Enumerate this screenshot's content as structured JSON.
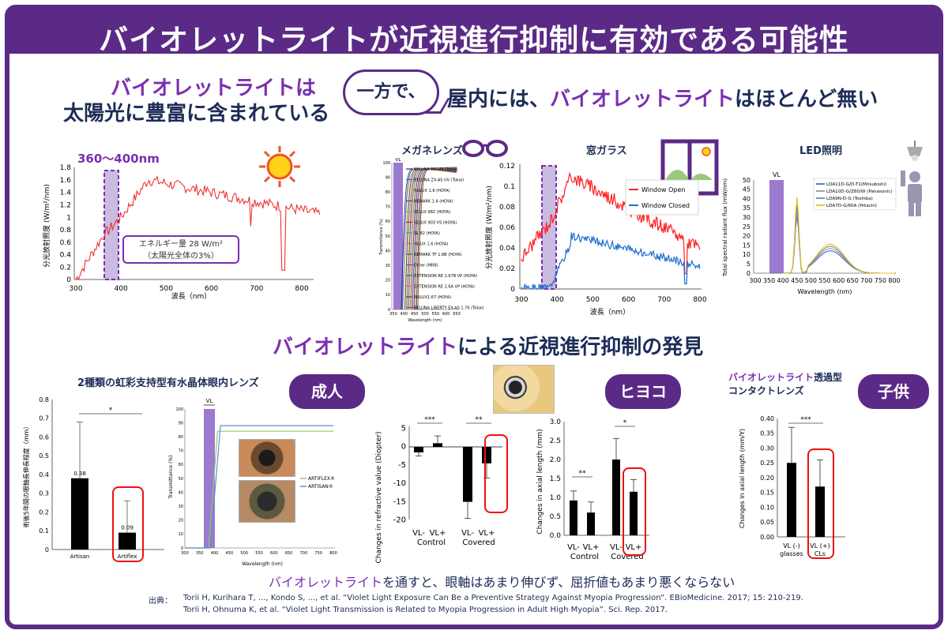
{
  "header": {
    "title": "バイオレットライトが近視進行抑制に有効である可能性"
  },
  "top": {
    "left_heading_1": "バイオレットライトは",
    "left_heading_2": "太陽光に豊富に含まれている",
    "bubble": "一方で、",
    "right_heading_pre": "屋内には、",
    "right_heading_hl": "バイオレットライト",
    "right_heading_post": "はほとんど無い"
  },
  "solar_chart": {
    "range_label": "360～400nm",
    "ylabel": "分光放射照度 (W/m²/nm)",
    "xlabel": "波長（nm）",
    "y_ticks": [
      "1.8",
      "1.6",
      "1.4",
      "1.2",
      "1",
      "0.8",
      "0.6",
      "0.4",
      "0.2",
      "0"
    ],
    "x_ticks": [
      "300",
      "400",
      "500",
      "600",
      "700",
      "800"
    ],
    "callout_1": "エネルギー量 28 W/m²",
    "callout_2": "（太陽光全体の3%）"
  },
  "glasses_chart": {
    "title": "メガネレンズ",
    "vl": "VL",
    "ylabel": "Transmittance (%)",
    "xlabel": "Wavelength (nm)",
    "y_ticks": [
      "100",
      "90",
      "80",
      "70",
      "60",
      "50",
      "40",
      "30",
      "20",
      "10",
      "0"
    ],
    "x_ticks": [
      "350",
      "400",
      "450",
      "500",
      "550",
      "600",
      "650"
    ],
    "legend": [
      "BELUNA HX UV (Tokai)",
      "BELUNA ZX-AS UV (Tokai)",
      "NULUX 1.6 (HOYA)",
      "REMARK 1.6 (HOYA)",
      "SELUX 982 (HOYA)",
      "SELUX 903 VS (HOYA)",
      "SL 82 (HOYA)",
      "HILUX 1.6 (HOYA)",
      "REMARK TF 1.6B (HOYA)",
      "Other (MR8)",
      "EXTENSION RE 1.67B VP (HOYA)",
      "EXTENSION RE 1.6A VP (HOYA)",
      "NULUX1.67 (HOYA)",
      "BELUNA LIBERTY EX-AS 1.76 (Tokai)"
    ]
  },
  "window_chart": {
    "title": "窓ガラス",
    "ylabel": "分光放射照度 (W/m²/nm)",
    "xlabel": "波長（nm）",
    "y_ticks": [
      "0.12",
      "0.1",
      "0.08",
      "0.06",
      "0.04",
      "0.02",
      "0"
    ],
    "x_ticks": [
      "300",
      "400",
      "500",
      "600",
      "700",
      "800"
    ],
    "legend_open": "Window Open",
    "legend_closed": "Window Closed",
    "colors": {
      "open": "#ff2020",
      "closed": "#1f6fd1"
    }
  },
  "led_chart": {
    "title": "LED照明",
    "vl": "VL",
    "ylabel": "Total spectral radiant flux (mW/nm)",
    "xlabel": "Wavelength (nm)",
    "y_ticks": [
      "50",
      "45",
      "40",
      "35",
      "30",
      "25",
      "20",
      "15",
      "10",
      "5",
      "0"
    ],
    "x_ticks": [
      "300",
      "350",
      "400",
      "450",
      "500",
      "550",
      "600",
      "650",
      "700",
      "750",
      "800"
    ],
    "legend": [
      "LDA11D-G/D-T1(Mitsubishi)",
      "LDA10D-G/Z60/W (Panasonic)",
      "LDA9N-D-G (Toshiba)",
      "LDA7D-G/60A (Hitachi)"
    ]
  },
  "mid": {
    "heading_hl": "バイオレットライト",
    "heading_post": "による近視進行抑制の発見"
  },
  "adult": {
    "title": "2種類の虹彩支持型有水晶体眼内レンズ",
    "pill": "成人",
    "bar_ylabel": "術後5年間の眼軸長伸長程度（mm）",
    "bar_y_ticks": [
      "0.8",
      "0.7",
      "0.6",
      "0.5",
      "0.4",
      "0.3",
      "0.2",
      "0.1",
      "0"
    ],
    "bar_cats": [
      "Artisan",
      "Artiflex"
    ],
    "bar_values": [
      0.38,
      0.09
    ],
    "bar_labels": [
      "0.38",
      "0.09"
    ],
    "sig": "*",
    "trans_vl": "VL",
    "trans_ylabel": "Transmittance (%)",
    "trans_xlabel": "Wavelength (nm)",
    "trans_y_ticks": [
      "100",
      "90",
      "80",
      "70",
      "60",
      "50",
      "40",
      "30",
      "20",
      "10",
      "0"
    ],
    "trans_x_ticks": [
      "300",
      "350",
      "400",
      "450",
      "500",
      "550",
      "600",
      "650",
      "700",
      "750",
      "800"
    ],
    "trans_legend": [
      "ARTIFLEX®",
      "ARTISAN®"
    ]
  },
  "chick": {
    "pill": "ヒヨコ",
    "refr_ylabel": "Changes in refractive value (Diopter)",
    "refr_y_ticks": [
      "5",
      "0",
      "-5",
      "-10",
      "-15",
      "-20"
    ],
    "refr_sig": [
      "***",
      "**"
    ],
    "refr_cats": [
      "VL-",
      "VL+",
      "VL-",
      "VL+"
    ],
    "refr_groups": [
      "Control",
      "Covered"
    ],
    "refr_values": [
      -1.5,
      1.0,
      -15,
      -4.5
    ],
    "axial_ylabel": "Changes in axial length (mm)",
    "axial_y_ticks": [
      "3.0",
      "2.5",
      "2.0",
      "1.5",
      "1.0",
      "0.5",
      "0.0"
    ],
    "axial_sig": [
      "**",
      "*"
    ],
    "axial_cats": [
      "VL-",
      "VL+",
      "VL-",
      "VL+"
    ],
    "axial_groups": [
      "Control",
      "Covered"
    ],
    "axial_values": [
      0.92,
      0.6,
      2.0,
      1.15
    ]
  },
  "child": {
    "title_hl": "バイオレットライト",
    "title_post": "透過型",
    "title_2": "コンタクトレンズ",
    "pill": "子供",
    "ylabel": "Changes in axial length (mm/Y)",
    "y_ticks": [
      "0.40",
      "0.35",
      "0.30",
      "0.25",
      "0.20",
      "0.15",
      "0.10",
      "0.05",
      "0.00"
    ],
    "sig": "***",
    "cats": [
      "VL (-)",
      "VL (+)"
    ],
    "cats_2": [
      "glasses",
      "CLs"
    ],
    "values": [
      0.25,
      0.17
    ]
  },
  "conclusion": {
    "hl": "バイオレットライト",
    "post": "を通すと、眼軸はあまり伸びず、屈折値もあまり悪くならない"
  },
  "refs": {
    "label": "出典：",
    "ref1": "Torii H, Kurihara T, ..., Kondo S, ..., et al. “Violet Light Exposure Can Be a Preventive Strategy Against Myopia Progression”. EBioMedicine. 2017; 15: 210-219.",
    "ref2": "Torii H, Ohnuma K, et al. “Violet Light Transmission is Related to Myopia Progression in Adult High Myopia”. Sci. Rep. 2017."
  }
}
